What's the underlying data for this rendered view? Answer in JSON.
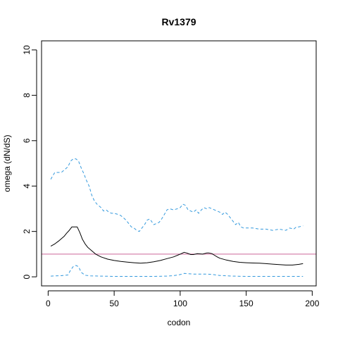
{
  "chart_data": {
    "type": "line",
    "title": "Rv1379",
    "xlabel": "codon",
    "ylabel": "omega (dN/dS)",
    "xlim": [
      -5,
      203
    ],
    "ylim": [
      -0.4,
      10.4
    ],
    "x_ticks": [
      0,
      50,
      100,
      150,
      200
    ],
    "y_ticks": [
      0,
      2,
      4,
      6,
      8,
      10
    ],
    "x_tick_labels": [
      "0",
      "50",
      "100",
      "150",
      "200"
    ],
    "y_tick_labels": [
      "0",
      "2",
      "4",
      "6",
      "8",
      "10"
    ],
    "grid": false,
    "reference_line": {
      "y": 1,
      "color": "#cc6699"
    },
    "series": [
      {
        "style": "solid",
        "color": "#000000",
        "x": [
          2,
          5,
          8,
          10,
          12,
          14,
          16,
          18,
          20,
          22,
          24,
          26,
          28,
          30,
          33,
          36,
          40,
          45,
          50,
          55,
          60,
          65,
          70,
          75,
          80,
          85,
          90,
          95,
          100,
          103,
          105,
          108,
          110,
          113,
          117,
          120,
          122,
          124,
          126,
          128,
          130,
          135,
          140,
          145,
          150,
          155,
          160,
          165,
          170,
          175,
          180,
          185,
          190,
          193
        ],
        "y": [
          1.35,
          1.45,
          1.58,
          1.68,
          1.78,
          1.92,
          2.05,
          2.2,
          2.2,
          2.2,
          1.95,
          1.65,
          1.45,
          1.3,
          1.15,
          1.0,
          0.88,
          0.78,
          0.72,
          0.68,
          0.65,
          0.62,
          0.6,
          0.62,
          0.66,
          0.72,
          0.8,
          0.88,
          1.0,
          1.08,
          1.05,
          0.98,
          0.98,
          1.02,
          1.0,
          1.05,
          1.05,
          1.02,
          0.95,
          0.88,
          0.82,
          0.74,
          0.68,
          0.64,
          0.62,
          0.61,
          0.6,
          0.58,
          0.56,
          0.54,
          0.52,
          0.52,
          0.55,
          0.58
        ]
      },
      {
        "style": "dashed",
        "color": "#3399dd",
        "x": [
          2,
          3,
          5,
          8,
          10,
          12,
          15,
          17,
          19,
          21,
          23,
          25,
          27,
          29,
          31,
          33,
          35,
          37,
          40,
          42,
          44,
          46,
          48,
          50,
          53,
          55,
          57,
          59,
          61,
          63,
          65,
          67,
          69,
          71,
          73,
          75,
          77,
          80,
          82,
          84,
          86,
          88,
          90,
          92,
          95,
          98,
          100,
          102,
          104,
          106,
          108,
          110,
          112,
          114,
          116,
          118,
          120,
          122,
          124,
          126,
          128,
          130,
          132,
          134,
          136,
          138,
          140,
          142,
          144,
          146,
          148,
          150,
          155,
          160,
          165,
          170,
          175,
          180,
          183,
          186,
          188,
          190,
          193
        ],
        "y": [
          4.3,
          4.4,
          4.6,
          4.6,
          4.6,
          4.7,
          4.85,
          5.1,
          5.2,
          5.2,
          5.1,
          4.8,
          4.55,
          4.25,
          4.0,
          3.6,
          3.35,
          3.2,
          3.05,
          2.9,
          2.95,
          2.85,
          2.8,
          2.8,
          2.75,
          2.7,
          2.6,
          2.5,
          2.35,
          2.2,
          2.15,
          2.05,
          2.0,
          2.15,
          2.3,
          2.5,
          2.55,
          2.3,
          2.35,
          2.4,
          2.55,
          2.75,
          2.95,
          3.0,
          2.95,
          3.0,
          3.05,
          3.2,
          3.15,
          2.95,
          2.9,
          2.85,
          2.95,
          2.8,
          2.95,
          3.05,
          3.0,
          3.05,
          3.0,
          2.95,
          2.9,
          2.85,
          2.75,
          2.85,
          2.75,
          2.6,
          2.45,
          2.3,
          2.4,
          2.2,
          2.15,
          2.15,
          2.15,
          2.1,
          2.1,
          2.05,
          2.1,
          2.05,
          2.15,
          2.1,
          2.2,
          2.2,
          2.25
        ]
      },
      {
        "style": "dashed",
        "color": "#3399dd",
        "x": [
          2,
          5,
          10,
          15,
          17,
          19,
          21,
          23,
          25,
          28,
          32,
          40,
          50,
          60,
          70,
          80,
          90,
          95,
          100,
          103,
          105,
          110,
          115,
          120,
          125,
          130,
          140,
          150,
          160,
          170,
          180,
          190,
          193
        ],
        "y": [
          0.03,
          0.04,
          0.05,
          0.08,
          0.3,
          0.45,
          0.5,
          0.45,
          0.2,
          0.07,
          0.04,
          0.03,
          0.02,
          0.02,
          0.02,
          0.02,
          0.03,
          0.05,
          0.1,
          0.15,
          0.14,
          0.12,
          0.12,
          0.12,
          0.1,
          0.06,
          0.03,
          0.02,
          0.02,
          0.02,
          0.02,
          0.02,
          0.02
        ]
      }
    ]
  }
}
